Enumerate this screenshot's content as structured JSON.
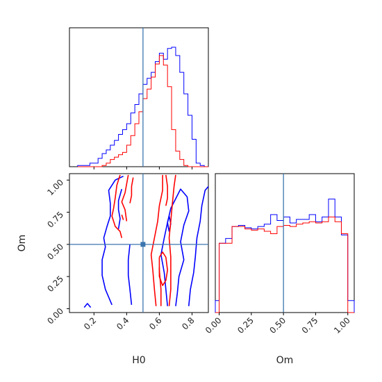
{
  "chart_data": {
    "type": "corner",
    "parameters": [
      "H0",
      "Om"
    ],
    "axis_labels": {
      "x_bottom_left": "H0",
      "x_bottom_right": "Om",
      "y_left_lower": "Om"
    },
    "ranges": {
      "H0": [
        0.05,
        0.9
      ],
      "Om": [
        -0.03,
        1.05
      ]
    },
    "ticks": {
      "H0": {
        "values": [
          0.2,
          0.4,
          0.6,
          0.8
        ],
        "labels": [
          "0.2",
          "0.4",
          "0.6",
          "0.8"
        ]
      },
      "Om": {
        "values": [
          0.0,
          0.25,
          0.5,
          0.75,
          1.0
        ],
        "labels": [
          "0.00",
          "0.25",
          "0.50",
          "0.75",
          "1.00"
        ]
      }
    },
    "truth": {
      "H0": 0.5,
      "Om": 0.5
    },
    "colors": {
      "series_a": "#0000ff",
      "series_b": "#ff0000",
      "truth": "#3b75af"
    },
    "hist_H0": {
      "bin_edges": [
        0.1,
        0.125,
        0.15,
        0.175,
        0.2,
        0.225,
        0.25,
        0.275,
        0.3,
        0.325,
        0.35,
        0.375,
        0.4,
        0.425,
        0.45,
        0.475,
        0.5,
        0.525,
        0.55,
        0.575,
        0.6,
        0.625,
        0.65,
        0.675,
        0.7,
        0.725,
        0.75,
        0.775,
        0.8,
        0.825,
        0.85,
        0.875,
        0.9
      ],
      "series": [
        {
          "color": "#0000ff",
          "values": [
            0.01,
            0.01,
            0.01,
            0.03,
            0.03,
            0.07,
            0.11,
            0.14,
            0.18,
            0.22,
            0.27,
            0.31,
            0.36,
            0.45,
            0.52,
            0.61,
            0.69,
            0.74,
            0.79,
            0.88,
            0.95,
            0.9,
            0.99,
            1.0,
            0.93,
            0.79,
            0.61,
            0.43,
            0.23,
            0.03,
            0.01,
            0.0
          ]
        },
        {
          "color": "#ff0000",
          "values": [
            0.0,
            0.0,
            0.0,
            0.0,
            0.0,
            0.0,
            0.01,
            0.03,
            0.06,
            0.08,
            0.1,
            0.12,
            0.18,
            0.26,
            0.36,
            0.46,
            0.57,
            0.65,
            0.75,
            0.86,
            0.93,
            0.85,
            0.67,
            0.31,
            0.13,
            0.06,
            0.01,
            0.0,
            0.0,
            0.0,
            0.0,
            0.0
          ]
        }
      ]
    },
    "hist_Om": {
      "bin_edges": [
        -0.03,
        0.0,
        0.05,
        0.1,
        0.15,
        0.2,
        0.25,
        0.3,
        0.35,
        0.4,
        0.45,
        0.5,
        0.55,
        0.6,
        0.65,
        0.7,
        0.75,
        0.8,
        0.85,
        0.9,
        0.95,
        1.0,
        1.05
      ],
      "series": [
        {
          "color": "#0000ff",
          "values": [
            0.1,
            0.58,
            0.62,
            0.72,
            0.73,
            0.71,
            0.7,
            0.72,
            0.74,
            0.82,
            0.77,
            0.8,
            0.75,
            0.78,
            0.78,
            0.82,
            0.76,
            0.8,
            0.95,
            0.8,
            0.65,
            0.1
          ]
        },
        {
          "color": "#ff0000",
          "values": [
            0.0,
            0.58,
            0.58,
            0.72,
            0.72,
            0.7,
            0.69,
            0.7,
            0.68,
            0.66,
            0.72,
            0.73,
            0.72,
            0.74,
            0.75,
            0.76,
            0.75,
            0.76,
            0.8,
            0.76,
            0.66,
            0.0
          ]
        }
      ]
    },
    "contours": [
      {
        "color": "#0000ff",
        "points": [
          [
            0.38,
            1.03
          ],
          [
            0.33,
            1.0
          ],
          [
            0.29,
            0.92
          ],
          [
            0.3,
            0.82
          ],
          [
            0.3,
            0.72
          ],
          [
            0.28,
            0.64
          ],
          [
            0.26,
            0.55
          ],
          [
            0.27,
            0.48
          ],
          [
            0.25,
            0.38
          ],
          [
            0.25,
            0.26
          ],
          [
            0.27,
            0.15
          ],
          [
            0.31,
            0.03
          ]
        ]
      },
      {
        "color": "#0000ff",
        "points": [
          [
            0.37,
            0.93
          ],
          [
            0.35,
            0.84
          ],
          [
            0.35,
            0.77
          ],
          [
            0.36,
            0.7
          ],
          [
            0.35,
            0.62
          ]
        ]
      },
      {
        "color": "#0000ff",
        "points": [
          [
            0.42,
            0.5
          ],
          [
            0.41,
            0.38
          ],
          [
            0.41,
            0.26
          ],
          [
            0.42,
            0.15
          ],
          [
            0.43,
            0.03
          ]
        ]
      },
      {
        "color": "#0000ff",
        "points": [
          [
            0.14,
            0.01
          ],
          [
            0.16,
            0.04
          ],
          [
            0.18,
            0.01
          ]
        ]
      },
      {
        "color": "#0000ff",
        "points": [
          [
            0.65,
            0.02
          ],
          [
            0.64,
            0.15
          ],
          [
            0.63,
            0.28
          ],
          [
            0.61,
            0.42
          ],
          [
            0.63,
            0.55
          ],
          [
            0.65,
            0.67
          ],
          [
            0.67,
            0.78
          ],
          [
            0.71,
            0.88
          ],
          [
            0.73,
            0.93
          ],
          [
            0.77,
            0.87
          ],
          [
            0.78,
            0.76
          ],
          [
            0.75,
            0.65
          ],
          [
            0.73,
            0.52
          ],
          [
            0.75,
            0.38
          ],
          [
            0.72,
            0.25
          ],
          [
            0.71,
            0.12
          ],
          [
            0.7,
            0.02
          ]
        ]
      },
      {
        "color": "#0000ff",
        "points": [
          [
            0.78,
            0.02
          ],
          [
            0.79,
            0.15
          ],
          [
            0.81,
            0.28
          ],
          [
            0.82,
            0.4
          ],
          [
            0.83,
            0.55
          ],
          [
            0.85,
            0.68
          ],
          [
            0.86,
            0.8
          ],
          [
            0.88,
            0.92
          ],
          [
            0.9,
            0.95
          ]
        ]
      },
      {
        "color": "#0000ff",
        "points": [
          [
            0.66,
            0.6
          ],
          [
            0.65,
            0.67
          ],
          [
            0.66,
            0.72
          ],
          [
            0.67,
            0.66
          ],
          [
            0.66,
            0.6
          ]
        ]
      },
      {
        "color": "#ff0000",
        "points": [
          [
            0.36,
            1.04
          ],
          [
            0.34,
            0.96
          ],
          [
            0.33,
            0.86
          ],
          [
            0.32,
            0.78
          ],
          [
            0.31,
            0.72
          ],
          [
            0.33,
            0.64
          ],
          [
            0.36,
            0.6
          ],
          [
            0.37,
            0.55
          ]
        ]
      },
      {
        "color": "#ff0000",
        "points": [
          [
            0.41,
            1.04
          ],
          [
            0.4,
            0.97
          ],
          [
            0.39,
            0.9
          ],
          [
            0.37,
            0.83
          ],
          [
            0.39,
            0.77
          ],
          [
            0.4,
            0.68
          ]
        ]
      },
      {
        "color": "#ff0000",
        "points": [
          [
            0.44,
            1.02
          ],
          [
            0.43,
            0.95
          ],
          [
            0.43,
            0.88
          ],
          [
            0.42,
            0.82
          ]
        ]
      },
      {
        "color": "#ff0000",
        "points": [
          [
            0.37,
            0.73
          ],
          [
            0.38,
            0.69
          ]
        ]
      },
      {
        "color": "#ff0000",
        "points": [
          [
            0.58,
            0.02
          ],
          [
            0.57,
            0.15
          ],
          [
            0.56,
            0.3
          ],
          [
            0.55,
            0.42
          ],
          [
            0.57,
            0.55
          ],
          [
            0.59,
            0.68
          ],
          [
            0.6,
            0.8
          ],
          [
            0.62,
            0.92
          ],
          [
            0.62,
            1.04
          ]
        ]
      },
      {
        "color": "#ff0000",
        "points": [
          [
            0.61,
            0.02
          ],
          [
            0.61,
            0.15
          ],
          [
            0.6,
            0.3
          ],
          [
            0.6,
            0.4
          ]
        ]
      },
      {
        "color": "#ff0000",
        "points": [
          [
            0.66,
            0.02
          ],
          [
            0.67,
            0.15
          ],
          [
            0.67,
            0.28
          ],
          [
            0.67,
            0.4
          ],
          [
            0.66,
            0.55
          ],
          [
            0.67,
            0.68
          ],
          [
            0.68,
            0.82
          ],
          [
            0.69,
            0.95
          ],
          [
            0.7,
            1.04
          ]
        ]
      },
      {
        "color": "#ff0000",
        "points": [
          [
            0.64,
            1.04
          ],
          [
            0.65,
            0.95
          ],
          [
            0.65,
            0.86
          ],
          [
            0.64,
            0.8
          ]
        ]
      },
      {
        "color": "#ff0000",
        "points": [
          [
            0.6,
            0.4
          ],
          [
            0.62,
            0.44
          ],
          [
            0.64,
            0.4
          ],
          [
            0.65,
            0.3
          ],
          [
            0.64,
            0.22
          ],
          [
            0.62,
            0.18
          ],
          [
            0.6,
            0.25
          ],
          [
            0.6,
            0.32
          ]
        ]
      }
    ]
  }
}
